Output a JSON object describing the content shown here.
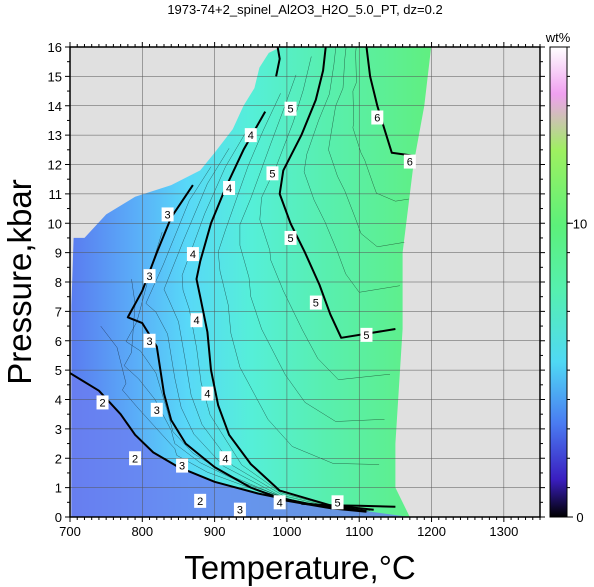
{
  "chart_data": {
    "type": "heatmap",
    "title": "1973-74+2_spinel_Al2O3_H2O_5.0_PT, dz=0.2",
    "xlabel": "Temperature,°C",
    "ylabel": "Pressure,kbar",
    "xlim": [
      700,
      1350
    ],
    "ylim": [
      0,
      16
    ],
    "x_ticks": [
      700,
      800,
      900,
      1000,
      1100,
      1200,
      1300
    ],
    "y_ticks": [
      0,
      1,
      2,
      3,
      4,
      5,
      6,
      7,
      8,
      9,
      10,
      11,
      12,
      13,
      14,
      15,
      16
    ],
    "grid": true,
    "colorbar": {
      "label": "wt%",
      "range": [
        0,
        16
      ],
      "ticks": [
        0,
        10
      ],
      "colors": [
        "#000000",
        "#3e1fbf",
        "#4a7cf2",
        "#4fd9f4",
        "#55f0b0",
        "#5cf07a",
        "#90f060",
        "#f0a0f0",
        "#ffffff"
      ]
    },
    "contours": [
      {
        "level": 2,
        "points": [
          [
            700,
            4.9
          ],
          [
            740,
            4.3
          ],
          [
            770,
            3.5
          ],
          [
            790,
            2.8
          ],
          [
            815,
            2.2
          ],
          [
            850,
            1.7
          ],
          [
            900,
            1.2
          ],
          [
            960,
            0.8
          ],
          [
            1030,
            0.45
          ],
          [
            1110,
            0.2
          ]
        ]
      },
      {
        "level": 3,
        "points": [
          [
            870,
            11.3
          ],
          [
            840,
            10.2
          ],
          [
            820,
            9.0
          ],
          [
            800,
            7.7
          ],
          [
            780,
            6.8
          ],
          [
            800,
            6.6
          ],
          [
            820,
            5.8
          ],
          [
            825,
            5.0
          ],
          [
            830,
            4.2
          ],
          [
            840,
            3.3
          ],
          [
            860,
            2.5
          ],
          [
            900,
            1.7
          ],
          [
            950,
            1.0
          ],
          [
            1000,
            0.55
          ],
          [
            1060,
            0.3
          ],
          [
            1110,
            0.18
          ]
        ]
      },
      {
        "level": 4,
        "points": [
          [
            970,
            13.8
          ],
          [
            940,
            12.5
          ],
          [
            915,
            11.2
          ],
          [
            895,
            10.0
          ],
          [
            880,
            8.7
          ],
          [
            875,
            8.1
          ],
          [
            880,
            7.5
          ],
          [
            890,
            6.3
          ],
          [
            895,
            5.0
          ],
          [
            905,
            3.8
          ],
          [
            920,
            2.8
          ],
          [
            950,
            1.8
          ],
          [
            990,
            0.9
          ],
          [
            1060,
            0.4
          ],
          [
            1120,
            0.25
          ]
        ]
      },
      {
        "level": 4,
        "points": [
          [
            985,
            16.3
          ],
          [
            990,
            15.6
          ],
          [
            985,
            15.0
          ]
        ]
      },
      {
        "level": 5,
        "points": [
          [
            1055,
            16.3
          ],
          [
            1050,
            15.2
          ],
          [
            1040,
            14.2
          ],
          [
            1020,
            13.0
          ],
          [
            995,
            11.8
          ],
          [
            990,
            11.0
          ],
          [
            1005,
            10.0
          ],
          [
            1025,
            9.0
          ],
          [
            1045,
            7.9
          ],
          [
            1060,
            6.9
          ],
          [
            1075,
            6.1
          ],
          [
            1150,
            6.4
          ]
        ]
      },
      {
        "level": 5,
        "points": [
          [
            1020,
            0.45
          ],
          [
            1055,
            0.4
          ],
          [
            1100,
            0.38
          ],
          [
            1150,
            0.35
          ]
        ]
      },
      {
        "level": 6,
        "points": [
          [
            1110,
            16.0
          ],
          [
            1115,
            15.0
          ],
          [
            1125,
            14.0
          ],
          [
            1135,
            13.2
          ],
          [
            1145,
            12.4
          ],
          [
            1175,
            12.3
          ]
        ]
      }
    ],
    "contour_labels": [
      {
        "text": "2",
        "x": 745,
        "y": 3.9
      },
      {
        "text": "2",
        "x": 790,
        "y": 2.0
      },
      {
        "text": "2",
        "x": 880,
        "y": 0.55
      },
      {
        "text": "3",
        "x": 835,
        "y": 10.3
      },
      {
        "text": "3",
        "x": 810,
        "y": 8.2
      },
      {
        "text": "3",
        "x": 810,
        "y": 6.0
      },
      {
        "text": "3",
        "x": 820,
        "y": 3.65
      },
      {
        "text": "3",
        "x": 855,
        "y": 1.75
      },
      {
        "text": "3",
        "x": 935,
        "y": 0.25
      },
      {
        "text": "4",
        "x": 950,
        "y": 13.0
      },
      {
        "text": "4",
        "x": 920,
        "y": 11.2
      },
      {
        "text": "4",
        "x": 870,
        "y": 8.95
      },
      {
        "text": "4",
        "x": 875,
        "y": 6.7
      },
      {
        "text": "4",
        "x": 890,
        "y": 4.2
      },
      {
        "text": "4",
        "x": 915,
        "y": 2.0
      },
      {
        "text": "4",
        "x": 990,
        "y": 0.5
      },
      {
        "text": "5",
        "x": 1005,
        "y": 13.9
      },
      {
        "text": "5",
        "x": 980,
        "y": 11.7
      },
      {
        "text": "5",
        "x": 1005,
        "y": 9.5
      },
      {
        "text": "5",
        "x": 1040,
        "y": 7.3
      },
      {
        "text": "5",
        "x": 1110,
        "y": 6.2
      },
      {
        "text": "5",
        "x": 1070,
        "y": 0.5
      },
      {
        "text": "6",
        "x": 1125,
        "y": 13.6
      },
      {
        "text": "6",
        "x": 1170,
        "y": 12.1
      }
    ]
  }
}
